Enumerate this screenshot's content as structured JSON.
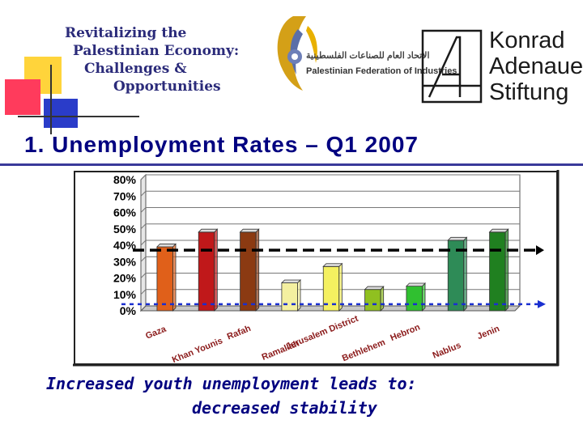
{
  "header": {
    "title_lines": [
      "Revitalizing the",
      "Palestinian Economy:",
      "Challenges &",
      "Opportunities"
    ],
    "pfi_logo": {
      "arabic": "الاتحاد العام للصناعات الفلسطينية",
      "english": "Palestinian Federation of Industries"
    },
    "kas_logo": {
      "lines": [
        "Konrad",
        "Adenauer",
        "Stiftung"
      ]
    }
  },
  "slide_title": "1.  Unemployment Rates – Q1 2007",
  "footer": {
    "line1": "Increased youth unemployment leads to:",
    "line2": "decreased stability"
  },
  "colors": {
    "accent": "#000080",
    "yellow": "#ffd43b",
    "red": "#ff3b5c",
    "blue": "#2a3cc9"
  },
  "chart_data": {
    "type": "bar",
    "categories": [
      "Gaza",
      "Khan Younis",
      "Rafah",
      "Ramallah",
      "Jerusalem District",
      "Bethlehem",
      "Hebron",
      "Nablus",
      "Jenin"
    ],
    "values": [
      39,
      48,
      48,
      17,
      27,
      13,
      15,
      43,
      48
    ],
    "colors": [
      "#e0601a",
      "#c0181a",
      "#8b3a12",
      "#f4f0a0",
      "#f4f060",
      "#90c020",
      "#30c030",
      "#2e8b57",
      "#208020"
    ],
    "ylim": [
      0,
      80
    ],
    "yticks": [
      "0%",
      "10%",
      "20%",
      "30%",
      "40%",
      "50%",
      "60%",
      "70%",
      "80%"
    ],
    "reference_lines": [
      {
        "value": 37,
        "style": "dashed-black"
      },
      {
        "value": 4,
        "style": "dotted-blue"
      }
    ],
    "grid": true,
    "legend": "none"
  }
}
